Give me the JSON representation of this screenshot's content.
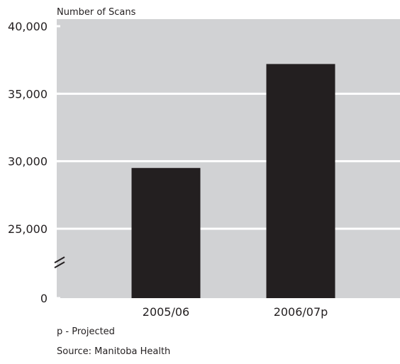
{
  "chart_data": {
    "type": "bar",
    "ylabel": "Number of Scans",
    "categories": [
      "2005/06",
      "2006/07p"
    ],
    "values": [
      29500,
      37200
    ],
    "ylim": [
      0,
      40000
    ],
    "axis_break": [
      0,
      25000
    ],
    "yticks": [
      {
        "value": 0,
        "label": "0"
      },
      {
        "value": 25000,
        "label": "25,000"
      },
      {
        "value": 30000,
        "label": "30,000"
      },
      {
        "value": 35000,
        "label": "35,000"
      },
      {
        "value": 40000,
        "label": "40,000"
      }
    ],
    "grid": true,
    "colors": {
      "plot_background": "#d1d2d4",
      "bar": "#231f20",
      "grid": "#ffffff"
    }
  },
  "footnote": "p - Projected",
  "source": "Source: Manitoba Health"
}
